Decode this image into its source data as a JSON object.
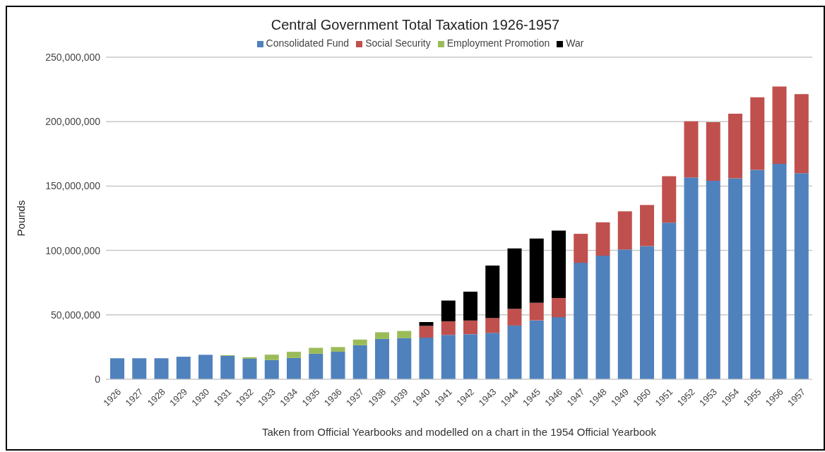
{
  "chart_data": {
    "type": "bar",
    "title": "Central Government Total Taxation 1926-1957",
    "xlabel": "Taken from Official Yearbooks and modelled on a chart in the 1954 Official Yearbook",
    "ylabel": "Pounds",
    "categories": [
      "1926",
      "1927",
      "1928",
      "1929",
      "1930",
      "1931",
      "1932",
      "1933",
      "1934",
      "1935",
      "1936",
      "1937",
      "1938",
      "1939",
      "1940",
      "1941",
      "1942",
      "1943",
      "1944",
      "1945",
      "1946",
      "1947",
      "1948",
      "1949",
      "1950",
      "1951",
      "1952",
      "1953",
      "1954",
      "1955",
      "1956",
      "1957"
    ],
    "stacked": true,
    "ylim": [
      0,
      250000000
    ],
    "yticks": [
      0,
      {
        "value": 50000000,
        "label": "50,000,000"
      },
      {
        "value": 100000000,
        "label": "100,000,000"
      },
      {
        "value": 150000000,
        "label": "150,000,000"
      },
      {
        "value": 200000000,
        "label": "200,000,000"
      },
      {
        "value": 250000000,
        "label": "250,000,000"
      }
    ],
    "grid": "y",
    "legend": "top",
    "series": [
      {
        "name": "Consolidated Fund",
        "color": "#4f81bd",
        "values": [
          16300000,
          16300000,
          16300000,
          17500000,
          19000000,
          18100000,
          15900000,
          14900000,
          16500000,
          19800000,
          21400000,
          26400000,
          31300000,
          31900000,
          32300000,
          34400000,
          35000000,
          36000000,
          41700000,
          45700000,
          48200000,
          90400000,
          95900000,
          100800000,
          103300000,
          121600000,
          156600000,
          154000000,
          156000000,
          162500000,
          167200000,
          159900000
        ]
      },
      {
        "name": "Social Security",
        "color": "#c0504d",
        "values": [
          null,
          null,
          null,
          null,
          null,
          null,
          null,
          null,
          null,
          null,
          null,
          null,
          null,
          null,
          9100000,
          10600000,
          10600000,
          11600000,
          13000000,
          13600000,
          14800000,
          22500000,
          25900000,
          29500000,
          32000000,
          36000000,
          43600000,
          45600000,
          50100000,
          56400000,
          60100000,
          61500000
        ]
      },
      {
        "name": "Employment Promotion",
        "color": "#9bbb59",
        "values": [
          null,
          null,
          null,
          null,
          null,
          600000,
          1200000,
          4200000,
          4800000,
          4600000,
          3600000,
          4400000,
          5200000,
          5600000,
          null,
          null,
          null,
          null,
          null,
          null,
          null,
          null,
          null,
          null,
          null,
          null,
          null,
          null,
          null,
          null,
          null,
          null
        ]
      },
      {
        "name": "War",
        "color": "#000000",
        "values": [
          null,
          null,
          null,
          null,
          null,
          null,
          null,
          null,
          null,
          null,
          null,
          null,
          null,
          null,
          3000000,
          16100000,
          22400000,
          40600000,
          46900000,
          50000000,
          52400000,
          null,
          null,
          null,
          null,
          null,
          null,
          null,
          null,
          null,
          null,
          null
        ]
      }
    ]
  }
}
